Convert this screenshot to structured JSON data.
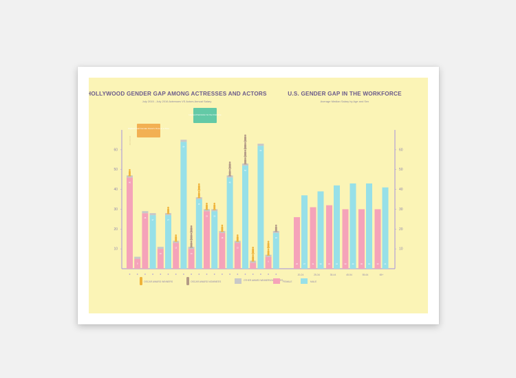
{
  "colors": {
    "background": "#f1f1f1",
    "frame": "#ffffff",
    "poster": "#fbf4b6",
    "female": "#f5a3b9",
    "male": "#97e0e8",
    "oscar_winner": "#efb33a",
    "oscar_nominee": "#b39a86",
    "other_award": "#c8c8c8",
    "axis": "#b3a2d6",
    "title": "#6a5a8a"
  },
  "chart_data": [
    {
      "type": "bar",
      "title": "HOLLYWOOD GENDER GAP AMONG ACTRESSES AND ACTORS",
      "subtitle": "July 2015 - July 2016 Actresses VS Actors Annual Salary",
      "y_ticks": [
        "10",
        "20",
        "30",
        "40",
        "50",
        "60"
      ],
      "ylim": [
        0,
        70
      ],
      "grid": false,
      "series": [
        {
          "name": "FEMALE",
          "values": [
            46,
            28,
            32,
            26,
            26,
            34,
            37,
            21,
            10,
            17,
            42,
            0
          ]
        },
        {
          "name": "MALE",
          "values": [
            44,
            32,
            32,
            26,
            21,
            17,
            56,
            0,
            0,
            0,
            0,
            0
          ]
        }
      ],
      "bars": [
        {
          "gender": "female",
          "value": 46,
          "awards": 1,
          "award_type": "winner"
        },
        {
          "gender": "female",
          "value": 5,
          "awards": 0,
          "award_type": "winner"
        },
        {
          "gender": "female",
          "value": 28,
          "awards": 0,
          "award_type": "winner"
        },
        {
          "gender": "male",
          "value": 27,
          "awards": 0,
          "award_type": "winner"
        },
        {
          "gender": "female",
          "value": 10,
          "awards": 0,
          "award_type": "winner"
        },
        {
          "gender": "male",
          "value": 27,
          "awards": 1,
          "award_type": "winner"
        },
        {
          "gender": "female",
          "value": 13,
          "awards": 1,
          "award_type": "winner"
        },
        {
          "gender": "male",
          "value": 64,
          "awards": 0,
          "award_type": "winner"
        },
        {
          "gender": "female",
          "value": 10,
          "awards": 3,
          "award_type": "nominee"
        },
        {
          "gender": "male",
          "value": 35,
          "awards": 2,
          "award_type": "winner"
        },
        {
          "gender": "female",
          "value": 29,
          "awards": 1,
          "award_type": "winner"
        },
        {
          "gender": "male",
          "value": 29,
          "awards": 1,
          "award_type": "winner"
        },
        {
          "gender": "female",
          "value": 18,
          "awards": 1,
          "award_type": "winner"
        },
        {
          "gender": "male",
          "value": 46,
          "awards": 2,
          "award_type": "nominee"
        },
        {
          "gender": "female",
          "value": 13,
          "awards": 1,
          "award_type": "winner"
        },
        {
          "gender": "male",
          "value": 52,
          "awards": 4,
          "award_type": "nominee"
        },
        {
          "gender": "female",
          "value": 3,
          "awards": 2,
          "award_type": "winner"
        },
        {
          "gender": "male",
          "value": 62,
          "awards": 0,
          "award_type": "winner"
        },
        {
          "gender": "female",
          "value": 6,
          "awards": 2,
          "award_type": "winner"
        },
        {
          "gender": "male",
          "value": 18,
          "awards": 1,
          "award_type": "nominee"
        }
      ],
      "annotations": [
        {
          "text": "Highest Paid Female Oscar's Once in a Time"
        },
        {
          "text": "Highest Paid Actor for the First time"
        }
      ],
      "legend": [
        {
          "label": "OSCAR AWARD WINNERS",
          "kind": "winner"
        },
        {
          "label": "OSCAR AWARD NOMINEES",
          "kind": "nominee"
        },
        {
          "label": "OTHER AWARD WINNERS/NOMINEES",
          "kind": "other"
        },
        {
          "label": "FEMALE",
          "kind": "female"
        },
        {
          "label": "MALE",
          "kind": "male"
        }
      ]
    },
    {
      "type": "bar",
      "title": "U.S. GENDER GAP IN THE WORKFORCE",
      "subtitle": "Average Median Salary by Age and Sex",
      "categories": [
        "20-24",
        "25-34",
        "35-44",
        "45-54",
        "55-64",
        "65+"
      ],
      "y_ticks": [
        "10",
        "20",
        "30",
        "40",
        "50",
        "60"
      ],
      "ylim": [
        0,
        70
      ],
      "series": [
        {
          "name": "FEMALE",
          "values": [
            26,
            31,
            32,
            30,
            30,
            30
          ]
        },
        {
          "name": "MALE",
          "values": [
            37,
            39,
            42,
            43,
            43,
            41
          ]
        }
      ]
    }
  ]
}
